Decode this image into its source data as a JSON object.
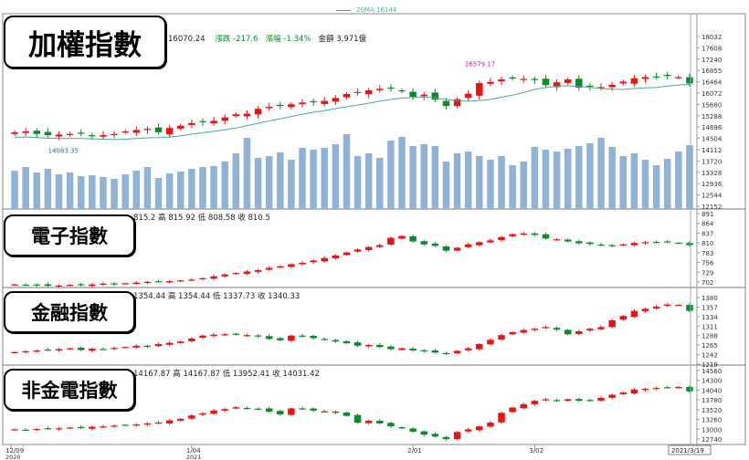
{
  "legend": {
    "ma_label": "20MA",
    "ma_value": "16144"
  },
  "panels": [
    {
      "id": "taiex",
      "title": "加權指數",
      "header": {
        "close": "16070.24",
        "change_label": "漲跌",
        "change": "-217.6",
        "pct_label": "漲幅",
        "pct": "-1.34%",
        "turnover_label": "金額",
        "turnover": "3,971億"
      },
      "y_ticks": [
        "18032",
        "17608",
        "17240",
        "16855",
        "16464",
        "16072",
        "15680",
        "15288",
        "14896",
        "14504",
        "14112",
        "13720",
        "13328",
        "12936",
        "12544",
        "12152"
      ],
      "annotations": {
        "high": "16579.17",
        "low": "14083.35"
      },
      "ylim": [
        12152,
        18032
      ]
    },
    {
      "id": "electronics",
      "title": "電子指數",
      "header": {
        "text": "815.2 高 815.92 低 808.58 收 810.5"
      },
      "y_ticks": [
        "891",
        "864",
        "837",
        "810",
        "783",
        "756",
        "729",
        "702"
      ],
      "ylim": [
        702,
        891
      ]
    },
    {
      "id": "finance",
      "title": "金融指數",
      "header": {
        "text": "1354.44 高 1354.44 低 1337.73 收 1340.33"
      },
      "y_ticks": [
        "1380",
        "1357",
        "1334",
        "1311",
        "1288",
        "1265",
        "1242",
        "1219"
      ],
      "ylim": [
        1219,
        1380
      ]
    },
    {
      "id": "non_fin_elec",
      "title": "非金電指數",
      "header": {
        "text": "14167.87 高 14167.87 低 13952.41 收 14031.42"
      },
      "y_ticks": [
        "14560",
        "14300",
        "14040",
        "13780",
        "13520",
        "13260",
        "13000",
        "12740"
      ],
      "ylim": [
        12740,
        14560
      ]
    }
  ],
  "x_axis": {
    "labels": [
      {
        "date": "12/09",
        "year": "2020"
      },
      {
        "date": "1/04",
        "year": "2021"
      },
      {
        "date": "2/01",
        "year": ""
      },
      {
        "date": "3/02",
        "year": ""
      }
    ],
    "cursor_label": "2021/3/19"
  },
  "colors": {
    "up": "#ee1111",
    "down": "#0a8a2a",
    "volume": "#8fb2d6",
    "ma": "#4aa8a0",
    "cursor": "#8fb2d6"
  },
  "chart_data": [
    {
      "type": "candlestick",
      "title": "加權指數",
      "closes": [
        14360,
        14390,
        14300,
        14260,
        14280,
        14300,
        14330,
        14230,
        14260,
        14300,
        14390,
        14440,
        14480,
        14360,
        14510,
        14590,
        14680,
        14720,
        14760,
        14880,
        14990,
        15010,
        15180,
        15250,
        15290,
        15340,
        15400,
        15420,
        15460,
        15560,
        15700,
        15740,
        15830,
        15880,
        15900,
        15800,
        15600,
        15680,
        15500,
        15280,
        15520,
        15710,
        16080,
        16120,
        16210,
        16240,
        16230,
        16190,
        16010,
        16110,
        16210,
        15920,
        15960,
        15940,
        16020,
        16130,
        16250,
        16290,
        16300,
        16330,
        16287,
        16070
      ],
      "volume_relative": [
        0.42,
        0.46,
        0.4,
        0.44,
        0.38,
        0.4,
        0.36,
        0.37,
        0.35,
        0.33,
        0.38,
        0.42,
        0.46,
        0.34,
        0.39,
        0.41,
        0.44,
        0.46,
        0.47,
        0.52,
        0.61,
        0.78,
        0.56,
        0.58,
        0.62,
        0.54,
        0.67,
        0.65,
        0.67,
        0.71,
        0.82,
        0.58,
        0.61,
        0.56,
        0.75,
        0.79,
        0.69,
        0.71,
        0.69,
        0.52,
        0.61,
        0.63,
        0.58,
        0.54,
        0.58,
        0.48,
        0.52,
        0.68,
        0.65,
        0.63,
        0.66,
        0.69,
        0.72,
        0.78,
        0.68,
        0.58,
        0.61,
        0.54,
        0.48,
        0.55,
        0.63,
        0.7
      ],
      "ylim": [
        12152,
        18032
      ],
      "ma_label": "20MA"
    },
    {
      "type": "candlestick",
      "title": "電子指數",
      "closes": [
        703,
        702,
        701,
        699,
        700,
        702,
        701,
        703,
        705,
        703,
        706,
        708,
        710,
        711,
        712,
        714,
        716,
        720,
        725,
        730,
        734,
        738,
        742,
        748,
        752,
        758,
        762,
        768,
        775,
        782,
        790,
        798,
        805,
        810,
        830,
        835,
        820,
        812,
        808,
        795,
        803,
        812,
        818,
        823,
        832,
        840,
        842,
        838,
        828,
        826,
        820,
        815,
        813,
        810,
        808,
        812,
        816,
        818,
        818,
        818,
        816,
        810
      ],
      "ylim": [
        702,
        891
      ]
    },
    {
      "type": "candlestick",
      "title": "金融指數",
      "closes": [
        1243,
        1245,
        1247,
        1248,
        1250,
        1252,
        1248,
        1251,
        1250,
        1253,
        1255,
        1258,
        1256,
        1262,
        1265,
        1268,
        1275,
        1282,
        1284,
        1285,
        1284,
        1283,
        1280,
        1274,
        1271,
        1282,
        1280,
        1276,
        1272,
        1268,
        1264,
        1258,
        1260,
        1255,
        1250,
        1252,
        1247,
        1245,
        1242,
        1240,
        1246,
        1252,
        1262,
        1272,
        1283,
        1290,
        1295,
        1298,
        1302,
        1296,
        1285,
        1292,
        1298,
        1302,
        1318,
        1328,
        1340,
        1345,
        1350,
        1355,
        1354,
        1340
      ],
      "ylim": [
        1219,
        1380
      ]
    },
    {
      "type": "candlestick",
      "title": "非金電指數",
      "closes": [
        13020,
        13010,
        13030,
        13040,
        13050,
        13070,
        13060,
        13090,
        13100,
        13120,
        13140,
        13150,
        13180,
        13200,
        13260,
        13300,
        13390,
        13450,
        13520,
        13560,
        13610,
        13580,
        13570,
        13490,
        13420,
        13580,
        13560,
        13520,
        13500,
        13460,
        13380,
        13200,
        13250,
        13180,
        13100,
        13050,
        12960,
        12880,
        12830,
        12760,
        12950,
        13020,
        13100,
        13200,
        13460,
        13600,
        13690,
        13780,
        13820,
        13790,
        13820,
        13780,
        13800,
        13860,
        13940,
        14000,
        14080,
        14100,
        14120,
        14140,
        14150,
        14031
      ],
      "ylim": [
        12740,
        14560
      ]
    }
  ]
}
